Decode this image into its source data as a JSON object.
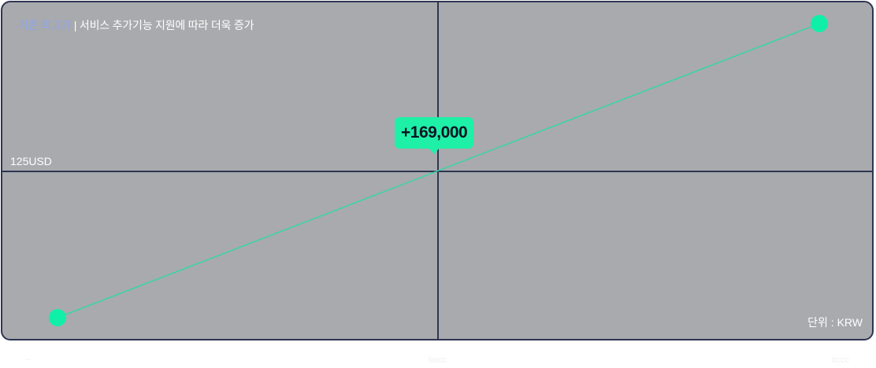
{
  "colors": {
    "panel_bg": "#a9aaae",
    "panel_border": "#2d3551",
    "axis_line": "#2d3551",
    "series_line": "#36d6a3",
    "point": "#0ff0a6",
    "callout_bg": "#1ef0a7",
    "subtitle_accent": "#8fa6e8",
    "text": "#ffffff"
  },
  "chart_data": {
    "type": "line",
    "subtitle_accent": "기존 최고가",
    "subtitle_rest": "| 서비스 추가기능 지원에 따라 더욱 증가",
    "ylabel": "125USD",
    "unit": "단위 : KRW",
    "callout": "+169,000",
    "x_ticks": [
      "~",
      "tiecc",
      "ticcc"
    ],
    "series": [
      {
        "points": [
          {
            "x": 0,
            "y": 0
          },
          {
            "x": 1,
            "y": 1
          }
        ]
      }
    ],
    "grid": false
  }
}
